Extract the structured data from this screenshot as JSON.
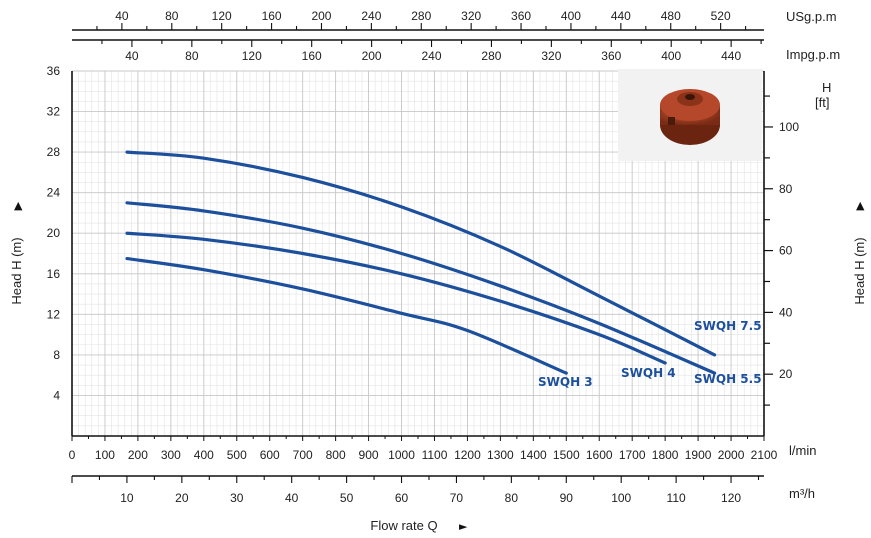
{
  "chart_data": {
    "type": "line",
    "x_unit": "l/min",
    "xlim": [
      0,
      2100
    ],
    "y_unit": "m",
    "ylim": [
      0,
      36
    ],
    "grid": true,
    "y_axis_label": "Head H (m)",
    "x_axis_title": "Flow rate Q",
    "arrow_up": "▲",
    "arrow_right": "►",
    "x_ticks_lmin": [
      0,
      100,
      200,
      300,
      400,
      500,
      600,
      700,
      800,
      900,
      1000,
      1100,
      1200,
      1300,
      1400,
      1500,
      1600,
      1700,
      1800,
      1900,
      2000,
      2100
    ],
    "y_ticks_m": [
      4,
      8,
      12,
      16,
      20,
      24,
      28,
      32,
      36
    ],
    "y_ticks_ft": [
      20,
      40,
      60,
      80,
      100
    ],
    "ft_axis_label": [
      "H",
      "[ft]"
    ],
    "m3h_unit": "m³/h",
    "m3h_ticks": [
      10,
      20,
      30,
      40,
      50,
      60,
      70,
      80,
      90,
      100,
      110,
      120
    ],
    "usgpm_unit": "USg.p.m",
    "usgpm_ticks": [
      40,
      80,
      120,
      160,
      200,
      240,
      280,
      320,
      360,
      400,
      440,
      480,
      520
    ],
    "impgpm_unit": "Impg.p.m",
    "impgpm_ticks": [
      40,
      80,
      120,
      160,
      200,
      240,
      280,
      320,
      360,
      400,
      440
    ],
    "series": [
      {
        "name": "SWQH 7.5",
        "color": "#1c4f9c",
        "points": [
          [
            167,
            28
          ],
          [
            400,
            27.4
          ],
          [
            700,
            25.5
          ],
          [
            1000,
            22.6
          ],
          [
            1300,
            18.7
          ],
          [
            1600,
            13.8
          ],
          [
            1950,
            8
          ]
        ]
      },
      {
        "name": "SWQH 5.5",
        "color": "#1c4f9c",
        "points": [
          [
            167,
            23
          ],
          [
            400,
            22.2
          ],
          [
            700,
            20.5
          ],
          [
            1000,
            18
          ],
          [
            1300,
            14.8
          ],
          [
            1600,
            11.1
          ],
          [
            1950,
            6.2
          ]
        ]
      },
      {
        "name": "SWQH 4",
        "color": "#1c4f9c",
        "points": [
          [
            167,
            20
          ],
          [
            400,
            19.4
          ],
          [
            700,
            18
          ],
          [
            1000,
            16
          ],
          [
            1300,
            13.3
          ],
          [
            1600,
            10
          ],
          [
            1800,
            7.2
          ]
        ]
      },
      {
        "name": "SWQH 3",
        "color": "#1c4f9c",
        "points": [
          [
            167,
            17.5
          ],
          [
            400,
            16.4
          ],
          [
            700,
            14.5
          ],
          [
            1000,
            12.1
          ],
          [
            1200,
            10.4
          ],
          [
            1500,
            6.2
          ]
        ]
      }
    ]
  }
}
